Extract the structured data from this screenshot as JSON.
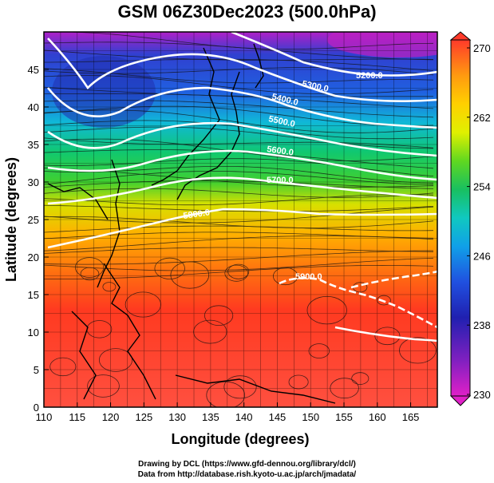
{
  "title": "GSM 06Z30Dec2023 (500.0hPa)",
  "map": {
    "lon_range": [
      110,
      169
    ],
    "lat_range": [
      0,
      50
    ],
    "xlabel": "Longitude (degrees)",
    "ylabel": "Latitude  (degrees)",
    "x_ticks": [
      "110",
      "115",
      "120",
      "125",
      "130",
      "135",
      "140",
      "145",
      "150",
      "155",
      "160",
      "165"
    ],
    "y_ticks": [
      "0",
      "5",
      "10",
      "15",
      "20",
      "25",
      "30",
      "35",
      "40",
      "45"
    ],
    "grid": true,
    "contours": [
      {
        "label": "5200.0"
      },
      {
        "label": "5300.0"
      },
      {
        "label": "5400.0"
      },
      {
        "label": "5500.0"
      },
      {
        "label": "5600.0"
      },
      {
        "label": "5700.0"
      },
      {
        "label": "5800.0"
      },
      {
        "label": "5900.0"
      }
    ],
    "colorbar": {
      "ticks": [
        "270",
        "262",
        "254",
        "246",
        "238",
        "230"
      ],
      "colors": [
        "#ff3a2a",
        "#ff6020",
        "#ff9a10",
        "#ffd000",
        "#e0f000",
        "#60d820",
        "#18c060",
        "#10c8c0",
        "#10a0e8",
        "#2050e0",
        "#2020b0",
        "#8020c0",
        "#e020c8"
      ]
    }
  },
  "credits": {
    "line1": "Drawing by DCL (https://www.gfd-dennou.org/library/dcl/)",
    "line2": "Data from http://database.rish.kyoto-u.ac.jp/arch/jmadata/"
  }
}
